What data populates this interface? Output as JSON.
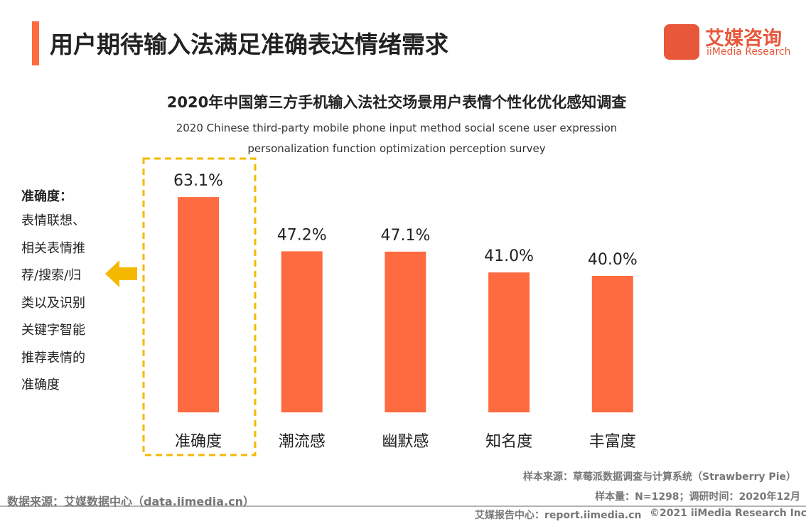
{
  "header": {
    "title": "用户期待输入法满足准确表达情绪需求"
  },
  "logo": {
    "name": "艾媒咨询",
    "sub": "iiMedia Research"
  },
  "chart_data": {
    "type": "bar",
    "title": "2020年中国第三方手机输入法社交场景用户表情个性化优化感知调查",
    "subtitle": "2020 Chinese third-party mobile phone input method social scene user expression personalization function optimization perception survey",
    "categories": [
      "准确度",
      "潮流感",
      "幽默感",
      "知名度",
      "丰富度"
    ],
    "values": [
      63.1,
      47.2,
      47.1,
      41.0,
      40.0
    ],
    "value_labels": [
      "63.1%",
      "47.2%",
      "47.1%",
      "41.0%",
      "40.0%"
    ],
    "color": "#ff6b40"
  },
  "annotation": {
    "title": "准确度：",
    "lines": [
      "表情联想、",
      "相关表情推",
      "荐/搜索/归",
      "类以及识别",
      "关键字智能",
      "推荐表情的",
      "准确度"
    ]
  },
  "footer": {
    "sample_source": "样本来源：草莓派数据调查与计算系统（Strawberry Pie）",
    "sample_size": "样本量：N=1298；调研时间：2020年12月",
    "data_source": "数据来源：艾媒数据中心（data.iimedia.cn）",
    "report": "艾媒报告中心：report.iimedia.cn",
    "copyright": "©2021  iiMedia Research  Inc"
  }
}
